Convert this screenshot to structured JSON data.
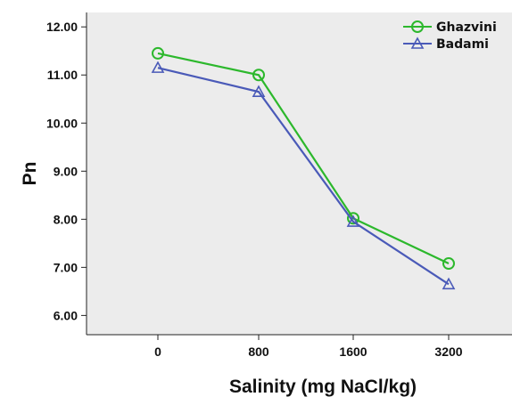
{
  "chart_data": {
    "type": "line",
    "title": "",
    "xlabel": "Salinity (mg NaCl/kg)",
    "ylabel": "Pn",
    "categories": [
      "0",
      "800",
      "1600",
      "3200"
    ],
    "ylim": [
      5.6,
      12.3
    ],
    "yticks": [
      "6.00",
      "7.00",
      "8.00",
      "9.00",
      "10.00",
      "11.00",
      "12.00"
    ],
    "ytick_values": [
      6,
      7,
      8,
      9,
      10,
      11,
      12
    ],
    "grid": false,
    "legend_position": "top-right",
    "plot_background": "#ececec",
    "series": [
      {
        "name": "Ghazvini",
        "color": "#2cb82c",
        "marker": "circle",
        "values": [
          11.45,
          11.0,
          8.02,
          7.08
        ]
      },
      {
        "name": "Badami",
        "color": "#4a5ab8",
        "marker": "triangle",
        "values": [
          11.15,
          10.65,
          7.95,
          6.65
        ]
      }
    ]
  }
}
